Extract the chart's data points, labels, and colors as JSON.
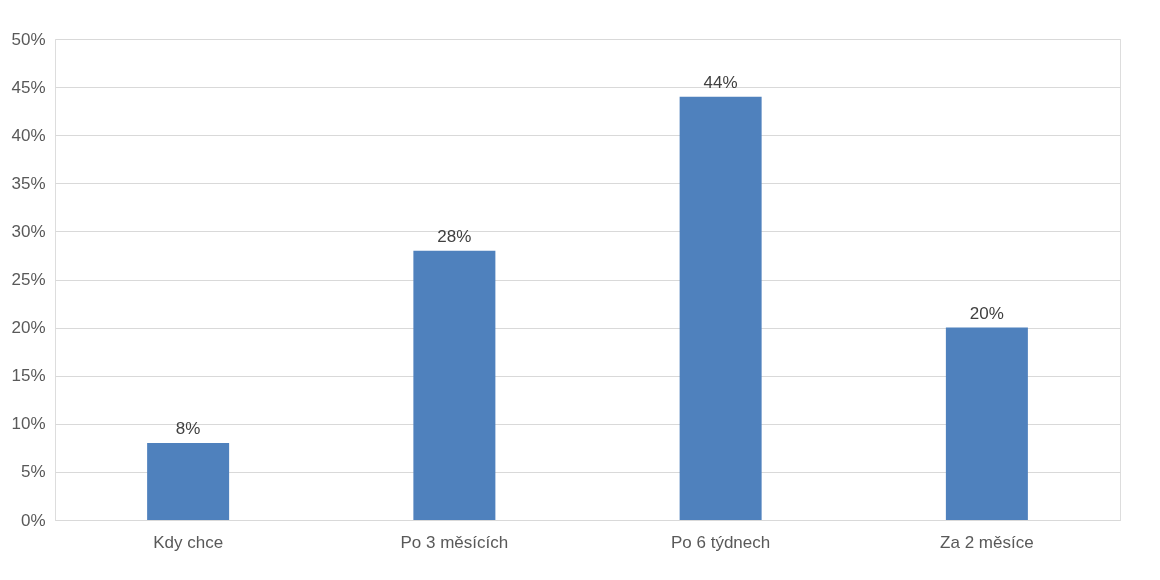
{
  "chart_data": {
    "type": "bar",
    "categories": [
      "Kdy chce",
      "Po 3 měsících",
      "Po 6 týdnech",
      "Za 2 měsíce"
    ],
    "values": [
      8,
      28,
      44,
      20
    ],
    "value_labels": [
      "8%",
      "28%",
      "44%",
      "20%"
    ],
    "color": "#4f81bd",
    "ylim": [
      0,
      50
    ],
    "yticks": [
      {
        "value": 0,
        "label": "0%"
      },
      {
        "value": 5,
        "label": "5%"
      },
      {
        "value": 10,
        "label": "10%"
      },
      {
        "value": 15,
        "label": "15%"
      },
      {
        "value": 20,
        "label": "20%"
      },
      {
        "value": 25,
        "label": "25%"
      },
      {
        "value": 30,
        "label": "30%"
      },
      {
        "value": 35,
        "label": "35%"
      },
      {
        "value": 40,
        "label": "40%"
      },
      {
        "value": 45,
        "label": "45%"
      },
      {
        "value": 50,
        "label": "50%"
      }
    ],
    "grid": "y"
  }
}
